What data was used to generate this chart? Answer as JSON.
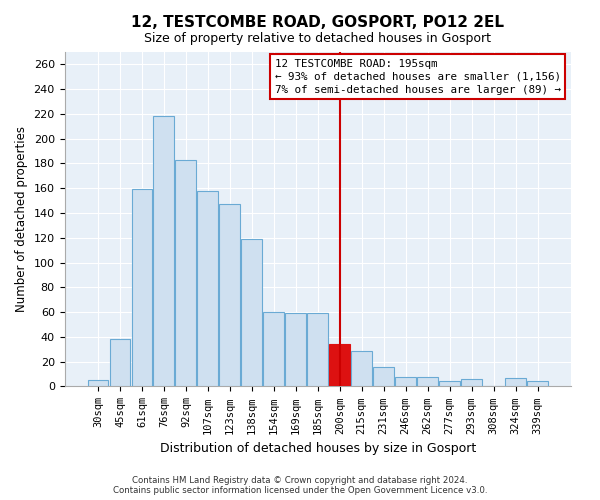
{
  "title": "12, TESTCOMBE ROAD, GOSPORT, PO12 2EL",
  "subtitle": "Size of property relative to detached houses in Gosport",
  "xlabel": "Distribution of detached houses by size in Gosport",
  "ylabel": "Number of detached properties",
  "categories": [
    "30sqm",
    "45sqm",
    "61sqm",
    "76sqm",
    "92sqm",
    "107sqm",
    "123sqm",
    "138sqm",
    "154sqm",
    "169sqm",
    "185sqm",
    "200sqm",
    "215sqm",
    "231sqm",
    "246sqm",
    "262sqm",
    "277sqm",
    "293sqm",
    "308sqm",
    "324sqm",
    "339sqm"
  ],
  "values": [
    5,
    38,
    159,
    218,
    183,
    158,
    147,
    119,
    60,
    59,
    59,
    34,
    29,
    16,
    8,
    8,
    4,
    6,
    0,
    7,
    4
  ],
  "bar_color": "#cfe0f0",
  "bar_edge_color": "#6aaad4",
  "highlight_bar_index": 11,
  "highlight_bar_color": "#dd1111",
  "highlight_bar_edge_color": "#dd1111",
  "vline_color": "#cc0000",
  "ylim": [
    0,
    270
  ],
  "yticks": [
    0,
    20,
    40,
    60,
    80,
    100,
    120,
    140,
    160,
    180,
    200,
    220,
    240,
    260
  ],
  "annotation_title": "12 TESTCOMBE ROAD: 195sqm",
  "annotation_line1": "← 93% of detached houses are smaller (1,156)",
  "annotation_line2": "7% of semi-detached houses are larger (89) →",
  "footer_line1": "Contains HM Land Registry data © Crown copyright and database right 2024.",
  "footer_line2": "Contains public sector information licensed under the Open Government Licence v3.0.",
  "plot_bg_color": "#e8f0f8",
  "fig_bg_color": "#ffffff",
  "grid_color": "#ffffff"
}
